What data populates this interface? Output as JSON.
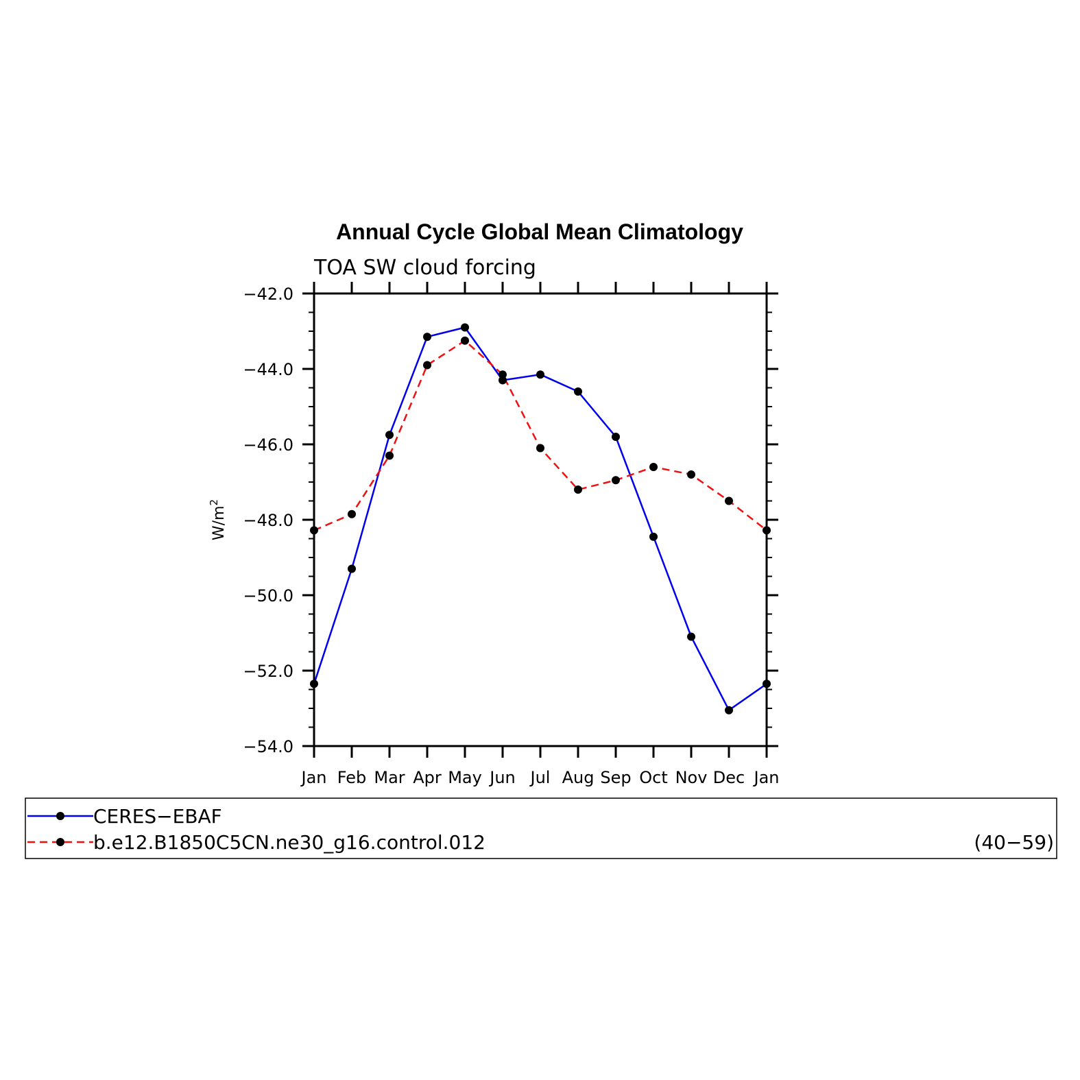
{
  "chart_data": {
    "type": "line",
    "title": "Annual Cycle Global Mean Climatology",
    "subtitle": "TOA SW cloud forcing",
    "ylabel": "W/m",
    "ylabel_superscript": "2",
    "xlabel": "",
    "categories": [
      "Jan",
      "Feb",
      "Mar",
      "Apr",
      "May",
      "Jun",
      "Jul",
      "Aug",
      "Sep",
      "Oct",
      "Nov",
      "Dec",
      "Jan"
    ],
    "ylim": [
      -54.0,
      -42.0
    ],
    "yticks": [
      "-42.0",
      "-44.0",
      "-46.0",
      "-48.0",
      "-50.0",
      "-52.0",
      "-54.0"
    ],
    "ytick_values": [
      -42,
      -44,
      -46,
      -48,
      -50,
      -52,
      -54
    ],
    "grid": false,
    "legend_position": "bottom",
    "legend_note": "(40−59)",
    "series": [
      {
        "name": "CERES−EBAF",
        "color": "#0000ee",
        "style": "solid",
        "values": [
          -52.35,
          -49.3,
          -45.75,
          -43.15,
          -42.9,
          -44.3,
          -44.15,
          -44.6,
          -45.8,
          -48.45,
          -51.1,
          -53.05,
          -52.35
        ]
      },
      {
        "name": "b.e12.B1850C5CN.ne30_g16.control.012",
        "color": "#ee1111",
        "style": "dashed",
        "values": [
          -48.28,
          -47.85,
          -46.3,
          -43.9,
          -43.25,
          -44.15,
          -46.1,
          -47.2,
          -46.95,
          -46.6,
          -46.8,
          -47.5,
          -48.28
        ]
      }
    ]
  }
}
